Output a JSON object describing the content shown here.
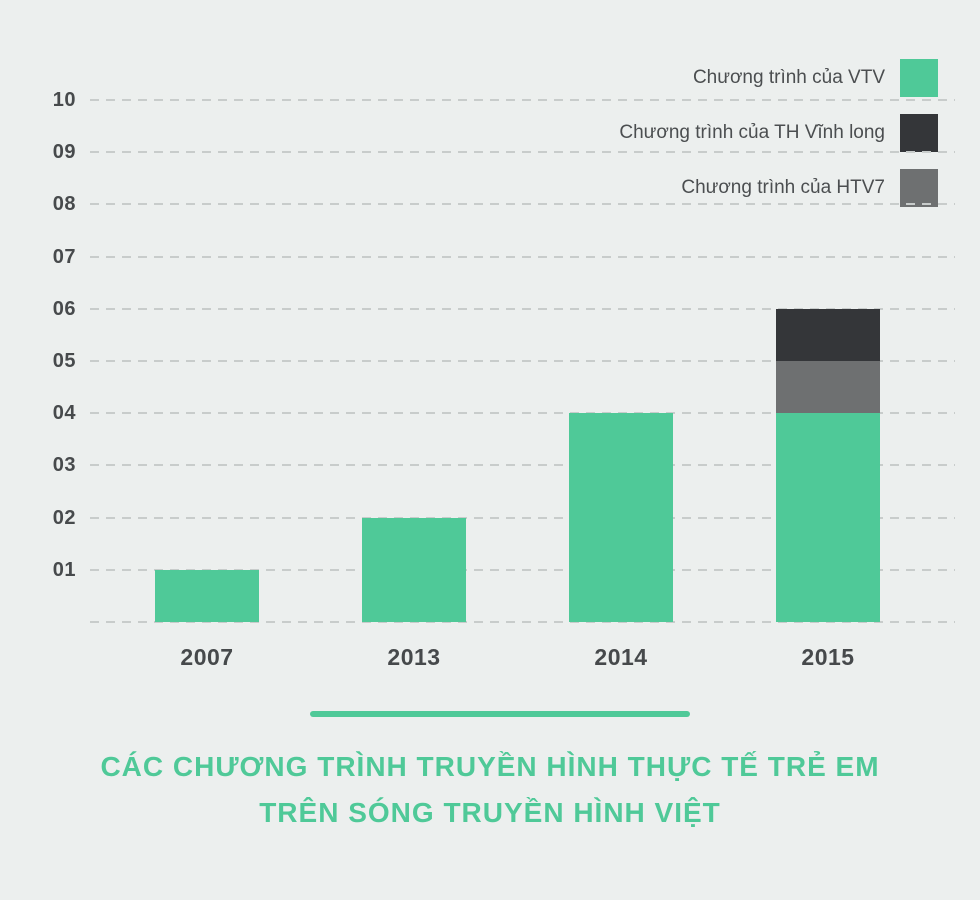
{
  "chart": {
    "title_lines": [
      "CÁC CHƯƠNG TRÌNH TRUYỀN HÌNH THỰC TẾ TRẺ EM",
      "TRÊN SÓNG TRUYỀN HÌNH VIỆT"
    ],
    "legend": [
      {
        "id": "vtv",
        "label": "Chương trình của VTV",
        "color": "#4fc998"
      },
      {
        "id": "th-vinh-long",
        "label": "Chương trình của TH Vĩnh long",
        "color": "#343639"
      },
      {
        "id": "htv7",
        "label": "Chương trình của HTV7",
        "color": "#6e7071"
      }
    ],
    "colors": {
      "background": "#ecefee",
      "accent_green": "#4fc998",
      "dark": "#343639",
      "gray": "#6e7071",
      "text": "#46494b",
      "gridline": "#c8cccb"
    }
  },
  "chart_data": {
    "type": "bar",
    "stacked": true,
    "title": "CÁC CHƯƠNG TRÌNH TRUYỀN HÌNH THỰC TẾ TRẺ EM TRÊN SÓNG TRUYỀN HÌNH VIỆT",
    "categories": [
      "2007",
      "2013",
      "2014",
      "2015"
    ],
    "series": [
      {
        "id": "vtv",
        "name": "Chương trình của VTV",
        "color": "#4fc998",
        "values": [
          1,
          2,
          4,
          4
        ]
      },
      {
        "id": "htv7",
        "name": "Chương trình của HTV7",
        "color": "#6e7071",
        "values": [
          0,
          0,
          0,
          1
        ]
      },
      {
        "id": "th-vinh-long",
        "name": "Chương trình của TH Vĩnh long",
        "color": "#343639",
        "values": [
          0,
          0,
          0,
          1
        ]
      }
    ],
    "xlabel": "",
    "ylabel": "",
    "ylim": [
      0,
      10
    ],
    "y_ticks": [
      "10",
      "09",
      "08",
      "07",
      "06",
      "05",
      "04",
      "03",
      "02",
      "01"
    ],
    "grid": "dashed-horizontal",
    "legend_position": "top-right"
  }
}
